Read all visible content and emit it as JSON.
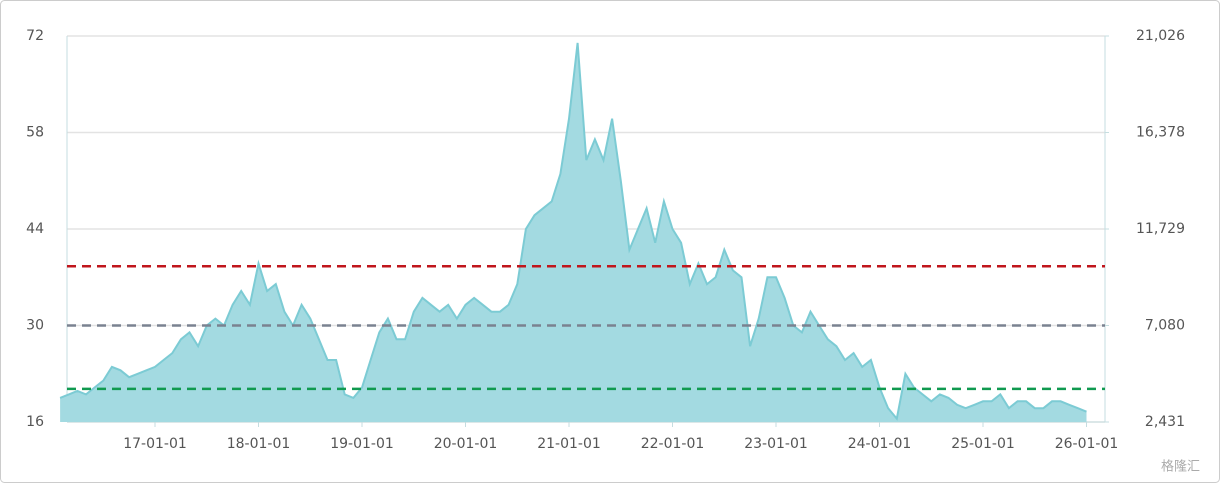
{
  "chart_data": {
    "type": "area",
    "x": [
      "16-02-01",
      "16-03-01",
      "16-04-01",
      "16-05-01",
      "16-06-01",
      "16-07-01",
      "16-08-01",
      "16-09-01",
      "16-10-01",
      "16-11-01",
      "16-12-01",
      "17-01-01",
      "17-02-01",
      "17-03-01",
      "17-04-01",
      "17-05-01",
      "17-06-01",
      "17-07-01",
      "17-08-01",
      "17-09-01",
      "17-10-01",
      "17-11-01",
      "17-12-01",
      "18-01-01",
      "18-02-01",
      "18-03-01",
      "18-04-01",
      "18-05-01",
      "18-06-01",
      "18-07-01",
      "18-08-01",
      "18-09-01",
      "18-10-01",
      "18-11-01",
      "18-12-01",
      "19-01-01",
      "19-02-01",
      "19-03-01",
      "19-04-01",
      "19-05-01",
      "19-06-01",
      "19-07-01",
      "19-08-01",
      "19-09-01",
      "19-10-01",
      "19-11-01",
      "19-12-01",
      "20-01-01",
      "20-02-01",
      "20-03-01",
      "20-04-01",
      "20-05-01",
      "20-06-01",
      "20-07-01",
      "20-08-01",
      "20-09-01",
      "20-10-01",
      "20-11-01",
      "20-12-01",
      "21-01-01",
      "21-02-01",
      "21-03-01",
      "21-04-01",
      "21-05-01",
      "21-06-01",
      "21-07-01",
      "21-08-01",
      "21-09-01",
      "21-10-01",
      "21-11-01",
      "21-12-01",
      "22-01-01",
      "22-02-01",
      "22-03-01",
      "22-04-01",
      "22-05-01",
      "22-06-01",
      "22-07-01",
      "22-08-01",
      "22-09-01",
      "22-10-01",
      "22-11-01",
      "22-12-01",
      "23-01-01",
      "23-02-01",
      "23-03-01",
      "23-04-01",
      "23-05-01",
      "23-06-01",
      "23-07-01",
      "23-08-01",
      "23-09-01",
      "23-10-01",
      "23-11-01",
      "23-12-01",
      "24-01-01",
      "24-02-01",
      "24-03-01",
      "24-04-01",
      "24-05-01",
      "24-06-01",
      "24-07-01",
      "24-08-01",
      "24-09-01",
      "24-10-01",
      "24-11-01",
      "24-12-01",
      "25-01-01",
      "25-02-01",
      "25-03-01",
      "25-04-01",
      "25-05-01",
      "25-06-01",
      "25-07-01",
      "25-08-01",
      "25-09-01",
      "25-10-01",
      "25-11-01",
      "25-12-01",
      "26-01-01"
    ],
    "series": [
      {
        "color": "#7ccbd4",
        "values": [
          19.5,
          20,
          20.5,
          20,
          21,
          22,
          24,
          23.5,
          22.5,
          23,
          23.5,
          24,
          25,
          26,
          28,
          29,
          27,
          30,
          31,
          30,
          33,
          35,
          33,
          39,
          35,
          36,
          32,
          30,
          33,
          31,
          28,
          25,
          25,
          20,
          19.5,
          21,
          25,
          29,
          31,
          28,
          28,
          32,
          34,
          33,
          32,
          33,
          31,
          33,
          34,
          33,
          32,
          32,
          33,
          36,
          44,
          46,
          47,
          48,
          52,
          60,
          71,
          54,
          57,
          54,
          60,
          51,
          41,
          44,
          47,
          42,
          48,
          44,
          42,
          36,
          39,
          36,
          37,
          41,
          38,
          37,
          27,
          31,
          37,
          37,
          34,
          30,
          29,
          32,
          30,
          28,
          27,
          25,
          26,
          24,
          25,
          21,
          18,
          16.5,
          23,
          21,
          20,
          19,
          20,
          19.5,
          18.5,
          18,
          18.5,
          19,
          19,
          20,
          18,
          19,
          19,
          18,
          18,
          19,
          19,
          18.5,
          18,
          17.5
        ]
      }
    ],
    "ylim": [
      16,
      72
    ],
    "yticks": [
      16,
      30,
      44,
      58,
      72
    ],
    "y2lim": [
      2431,
      21026
    ],
    "y2ticks": [
      {
        "value": 2431,
        "label": "2,431"
      },
      {
        "value": 7080,
        "label": "7,080"
      },
      {
        "value": 11729,
        "label": "11,729"
      },
      {
        "value": 16378,
        "label": "16,378"
      },
      {
        "value": 21026,
        "label": "21,026"
      }
    ],
    "xticks": [
      "17-01-01",
      "18-01-01",
      "19-01-01",
      "20-01-01",
      "21-01-01",
      "22-01-01",
      "23-01-01",
      "24-01-01",
      "25-01-01",
      "26-01-01"
    ],
    "reference_lines": [
      {
        "value": 38.6,
        "color": "#c0161c"
      },
      {
        "value": 30,
        "color": "#7a8290"
      },
      {
        "value": 20.8,
        "color": "#109a50"
      }
    ],
    "grid": true,
    "watermark": "格隆汇"
  }
}
